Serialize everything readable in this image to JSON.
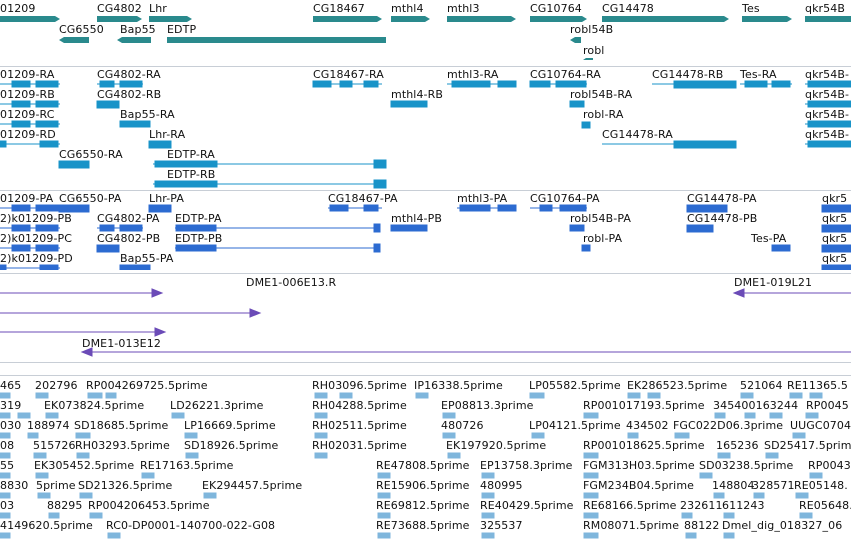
{
  "colors": {
    "gene": "#2a8a8d",
    "transcript": "#1893c8",
    "protein": "#2c6bd1",
    "clone": "#6b4bb7",
    "est": "#7fb6dc",
    "divider": "#c8ced6"
  },
  "gene_track": {
    "labels": [
      "01209",
      "CG4802",
      "Lhr",
      "CG6550",
      "Bap55",
      "EDTP",
      "CG18467",
      "mthl4",
      "mthl3",
      "CG10764",
      "robl54B",
      "robl",
      "CG14478",
      "Tes",
      "qkr54B"
    ]
  },
  "transcript_track": {
    "labels": [
      "01209-RA",
      "01209-RB",
      "01209-RC",
      "01209-RD",
      "CG4802-RA",
      "CG4802-RB",
      "Bap55-RA",
      "Lhr-RA",
      "CG6550-RA",
      "EDTP-RA",
      "EDTP-RB",
      "CG18467-RA",
      "mthl3-RA",
      "mthl4-RB",
      "CG10764-RA",
      "robl54B-RA",
      "robl-RA",
      "CG14478-RB",
      "CG14478-RA",
      "Tes-RA",
      "qkr54B-",
      "qkr54B-",
      "qkr54B-",
      "qkr54B-"
    ]
  },
  "protein_track": {
    "labels": [
      "01209-PA",
      "CG6550-PA",
      "Lhr-PA",
      "CG18467-PA",
      "mthl3-PA",
      "CG10764-PA",
      "CG14478-PA",
      "qkr5",
      "2)k01209-PB",
      "CG4802-PA",
      "EDTP-PA",
      "mthl4-PB",
      "robl54B-PA",
      "CG14478-PB",
      "qkr5",
      "2)k01209-PC",
      "CG4802-PB",
      "EDTP-PB",
      "robl-PA",
      "Tes-PA",
      "qkr5",
      "2)k01209-PD",
      "Bap55-PA",
      "qkr5"
    ]
  },
  "clone_track": {
    "labels": [
      "DME1-006E13.R",
      "DME1-019L21",
      "DME1-013E12"
    ]
  },
  "est_track": {
    "labels": [
      "465",
      "202796",
      "RP004269725.5prime",
      "RH03096.5prime",
      "IP16338.5prime",
      "LP05582.5prime",
      "EK286523.5prime",
      "521064",
      "RE11365.5",
      "319",
      "EK073824.5prime",
      "LD26221.3prime",
      "RH04288.5prime",
      "EP08813.3prime",
      "RP001017193.5prime",
      "345400163244",
      "RP0045",
      "030",
      "188974",
      "SD18685.5prime",
      "LP16669.5prime",
      "RH02511.5prime",
      "480726",
      "LP04121.5prime",
      "434502",
      "FGC022D06.3prime",
      "UUGC0704",
      "08",
      "515726",
      "RH03293.5prime",
      "SD18926.5prime",
      "RH02031.5prime",
      "EK197920.5prime",
      "RP001018625.5prime",
      "165236",
      "SD25417.5prime",
      "55",
      "EK305452.5prime",
      "RE17163.5prime",
      "RE47808.5prime",
      "EP13758.3prime",
      "FGM313H03.5prime",
      "SD03238.5prime",
      "RP0043",
      "8830",
      "5prime",
      "SD21326.5prime",
      "EK294457.5prime",
      "RE15906.5prime",
      "480995",
      "FGM234B04.5prime",
      "148804",
      "328571",
      "RE05148.",
      "03",
      "88295",
      "RP004206453.5prime",
      "RE69812.5prime",
      "RE40429.5prime",
      "RE68166.5prime",
      "232611",
      "611243",
      "RE05648.5",
      "4149620.5prime",
      "RC0-DP0001-140700-022-G08",
      "RE73688.5prime",
      "325537",
      "RM08071.5prime",
      "88122",
      "Dmel_dig_018327_06"
    ]
  }
}
